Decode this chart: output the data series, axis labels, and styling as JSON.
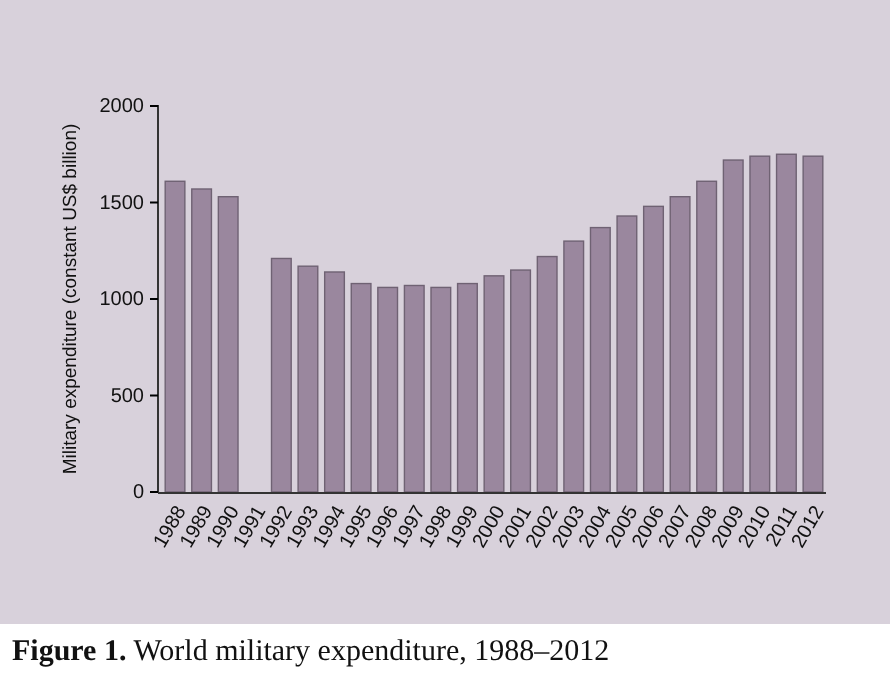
{
  "chart_data": {
    "type": "bar",
    "title": "Figure 1. World military expenditure, 1988–2012",
    "ylabel": "Military expenditure (constant US$ billion)",
    "categories": [
      "1988",
      "1989",
      "1990",
      "1991",
      "1992",
      "1993",
      "1994",
      "1995",
      "1996",
      "1997",
      "1998",
      "1999",
      "2000",
      "2001",
      "2002",
      "2003",
      "2004",
      "2005",
      "2006",
      "2007",
      "2008",
      "2009",
      "2010",
      "2011",
      "2012"
    ],
    "values": [
      1610,
      1570,
      1530,
      null,
      1210,
      1170,
      1140,
      1080,
      1060,
      1070,
      1060,
      1080,
      1120,
      1150,
      1220,
      1300,
      1370,
      1430,
      1480,
      1530,
      1610,
      1720,
      1740,
      1750,
      1740
    ],
    "color": "#9a879e",
    "ylim": [
      0,
      2000
    ],
    "yticks": [
      0,
      500,
      1000,
      1500,
      2000
    ]
  }
}
